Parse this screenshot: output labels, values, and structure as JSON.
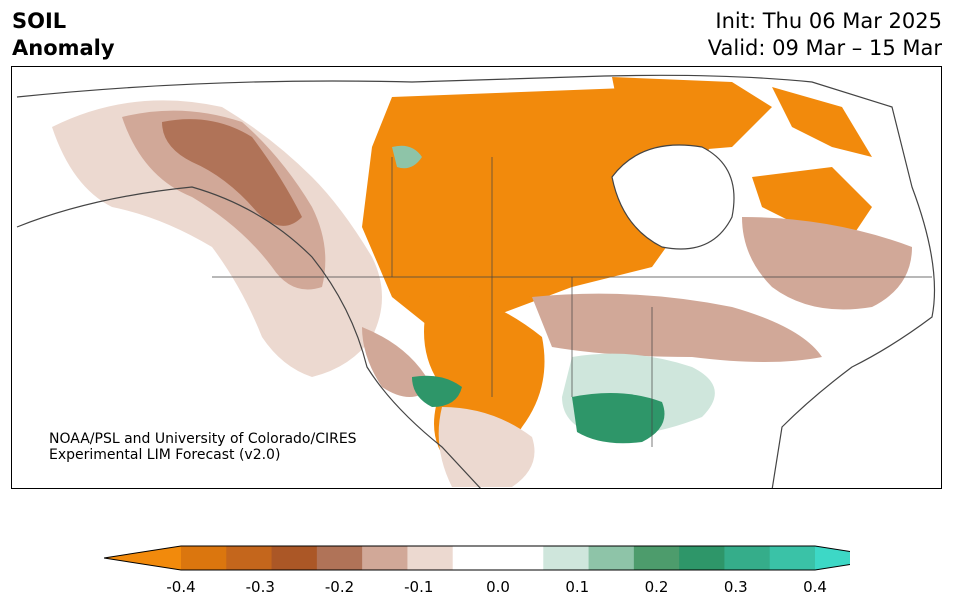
{
  "header": {
    "title_line1": "SOIL",
    "title_line2": "Anomaly",
    "init": "Init: Thu 06 Mar 2025",
    "valid": "Valid: 09 Mar – 15 Mar"
  },
  "credit": {
    "line1": "NOAA/PSL and University of Colorado/CIRES",
    "line2": "Experimental LIM Forecast (v2.0)"
  },
  "colorbar": {
    "colors": [
      "#f28a0c",
      "#db760e",
      "#c4661c",
      "#ab5726",
      "#b07358",
      "#d1a898",
      "#ecd9d0",
      "#ffffff",
      "#ffffff",
      "#cfe6dc",
      "#8ec4a8",
      "#4d9c6c",
      "#2e9669",
      "#35ad8a",
      "#3ac2a7",
      "#3dd8c6"
    ],
    "ticks": [
      "-0.4",
      "-0.3",
      "-0.2",
      "-0.1",
      "0.0",
      "0.1",
      "0.2",
      "0.3",
      "0.4"
    ]
  }
}
